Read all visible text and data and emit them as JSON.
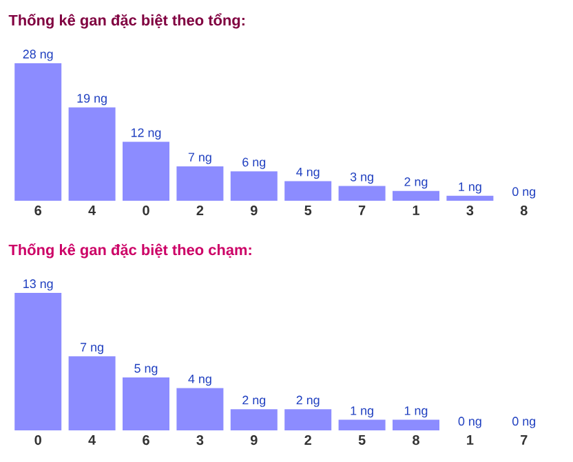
{
  "chart_data": [
    {
      "type": "bar",
      "title": "Thống kê gan đặc biệt theo tổng:",
      "categories": [
        "6",
        "4",
        "0",
        "2",
        "9",
        "5",
        "7",
        "1",
        "3",
        "8"
      ],
      "values": [
        28,
        19,
        12,
        7,
        6,
        4,
        3,
        2,
        1,
        0
      ],
      "value_labels": [
        "28 ng",
        "19 ng",
        "12 ng",
        "7 ng",
        "6 ng",
        "4 ng",
        "3 ng",
        "2 ng",
        "1 ng",
        "0 ng"
      ],
      "color": "#8c8cff"
    },
    {
      "type": "bar",
      "title": "Thống kê gan đặc biệt theo chạm:",
      "categories": [
        "0",
        "4",
        "6",
        "3",
        "9",
        "2",
        "5",
        "8",
        "1",
        "7"
      ],
      "values": [
        13,
        7,
        5,
        4,
        2,
        2,
        1,
        1,
        0,
        0
      ],
      "value_labels": [
        "13 ng",
        "7 ng",
        "5 ng",
        "4 ng",
        "2 ng",
        "2 ng",
        "1 ng",
        "1 ng",
        "0 ng",
        "0 ng"
      ],
      "color": "#8c8cff"
    }
  ]
}
